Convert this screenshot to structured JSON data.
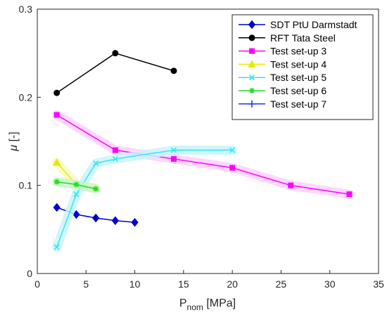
{
  "chart_data": {
    "type": "line",
    "xlabel_main": "P",
    "xlabel_sub": "nom",
    "xlabel_unit": " [MPa]",
    "ylabel_greek": "μ",
    "ylabel_unit": " [-]",
    "xlim": [
      0,
      35
    ],
    "ylim": [
      0,
      0.3
    ],
    "xticks": [
      0,
      5,
      10,
      15,
      20,
      25,
      30,
      35
    ],
    "yticks": [
      0,
      0.1,
      0.2,
      0.3
    ],
    "xtick_labels": [
      "0",
      "5",
      "10",
      "15",
      "20",
      "25",
      "30",
      "35"
    ],
    "ytick_labels": [
      "0",
      "0.1",
      "0.2",
      "0.3"
    ],
    "grid": false,
    "legend_position": "top-right",
    "series": [
      {
        "name": "SDT PtU Darmstadt",
        "color": "#0000cc",
        "marker": "diamond",
        "shadow": "",
        "x": [
          2,
          4,
          6,
          8,
          10
        ],
        "y": [
          0.075,
          0.067,
          0.063,
          0.06,
          0.058
        ]
      },
      {
        "name": "RFT Tata Steel",
        "color": "#000000",
        "marker": "circle",
        "shadow": "",
        "x": [
          2,
          8,
          14
        ],
        "y": [
          0.205,
          0.25,
          0.23
        ]
      },
      {
        "name": "Test set-up 3",
        "color": "#ff00ff",
        "marker": "square",
        "shadow": "#ffd0ff",
        "x": [
          2,
          8,
          14,
          20,
          26,
          32
        ],
        "y": [
          0.18,
          0.14,
          0.13,
          0.12,
          0.1,
          0.09
        ]
      },
      {
        "name": "Test set-up 4",
        "color": "#e8e800",
        "marker": "triangle",
        "shadow": "#fafac0",
        "x": [
          2,
          4,
          6
        ],
        "y": [
          0.126,
          0.101,
          0.097
        ]
      },
      {
        "name": "Test set-up 5",
        "color": "#33e6f0",
        "marker": "x",
        "shadow": "#c8f4f8",
        "x": [
          2,
          4,
          6,
          8,
          14,
          20
        ],
        "y": [
          0.03,
          0.09,
          0.125,
          0.13,
          0.14,
          0.14
        ]
      },
      {
        "name": "Test set-up 6",
        "color": "#22dd22",
        "marker": "star",
        "shadow": "#c8f4c8",
        "x": [
          2,
          4,
          6
        ],
        "y": [
          0.104,
          0.101,
          0.096
        ]
      },
      {
        "name": "Test set-up 7",
        "color": "#2233ff",
        "marker": "plus",
        "shadow": "",
        "x": [],
        "y": []
      }
    ]
  }
}
